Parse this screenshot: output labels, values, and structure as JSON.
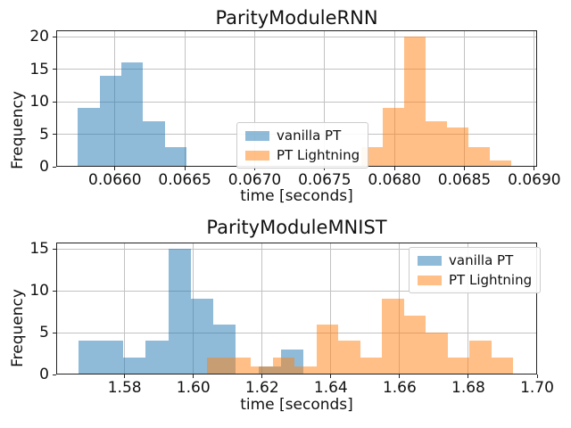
{
  "figure": {
    "background": "#ffffff",
    "colors": {
      "vanilla_pt": "#1f77b4",
      "pt_lightning": "#ff7f0e",
      "bar_alpha": 0.5,
      "grid": "#c2c2c2",
      "spine": "#222222",
      "text": "#111111",
      "legend_border": "#cccccc"
    }
  },
  "legend": {
    "entries": [
      {
        "label": "vanilla PT",
        "color": "#1f77b4"
      },
      {
        "label": "PT Lightning",
        "color": "#ff7f0e"
      }
    ]
  },
  "chart_data": [
    {
      "type": "histogram",
      "title": "ParityModuleRNN",
      "xlabel": "time [seconds]",
      "ylabel": "Frequency",
      "xlim": [
        0.06558,
        0.06902
      ],
      "ylim": [
        0,
        21
      ],
      "grid": true,
      "legend_position": "center",
      "xticks": {
        "values": [
          0.066,
          0.0665,
          0.067,
          0.0675,
          0.068,
          0.0685,
          0.069
        ],
        "labels": [
          "0.0660",
          "0.0665",
          "0.0670",
          "0.0675",
          "0.0680",
          "0.0685",
          "0.0690"
        ]
      },
      "yticks": {
        "values": [
          0,
          5,
          10,
          15,
          20
        ],
        "labels": [
          "0",
          "5",
          "10",
          "15",
          "20"
        ]
      },
      "series": [
        {
          "name": "vanilla PT",
          "color": "#1f77b4",
          "alpha": 0.5,
          "bin_start": 0.065734,
          "bin_width": 0.000156,
          "counts": [
            9,
            14,
            16,
            7,
            3
          ]
        },
        {
          "name": "PT Lightning",
          "color": "#ff7f0e",
          "alpha": 0.5,
          "bin_start": 0.067761,
          "bin_width": 0.000153,
          "counts": [
            3,
            9,
            20,
            7,
            6,
            3,
            1
          ]
        }
      ]
    },
    {
      "type": "histogram",
      "title": "ParityModuleMNIST",
      "xlabel": "time [seconds]",
      "ylabel": "Frequency",
      "xlim": [
        1.5601,
        1.7
      ],
      "ylim": [
        0,
        15.75
      ],
      "grid": true,
      "legend_position": "upper right",
      "xticks": {
        "values": [
          1.58,
          1.6,
          1.62,
          1.64,
          1.66,
          1.68,
          1.7
        ],
        "labels": [
          "1.58",
          "1.60",
          "1.62",
          "1.64",
          "1.66",
          "1.68",
          "1.70"
        ]
      },
      "yticks": {
        "values": [
          0,
          5,
          10,
          15
        ],
        "labels": [
          "0",
          "5",
          "10",
          "15"
        ]
      },
      "series": [
        {
          "name": "vanilla PT",
          "color": "#1f77b4",
          "alpha": 0.5,
          "bin_start": 1.5665,
          "bin_width": 0.00655,
          "counts": [
            4,
            4,
            2,
            4,
            15,
            9,
            6,
            0,
            1,
            3
          ]
        },
        {
          "name": "PT Lightning",
          "color": "#ff7f0e",
          "alpha": 0.5,
          "bin_start": 1.604,
          "bin_width": 0.00636,
          "counts": [
            2,
            2,
            1,
            2,
            1,
            6,
            4,
            2,
            9,
            7,
            5,
            2,
            4,
            2
          ]
        }
      ]
    }
  ]
}
